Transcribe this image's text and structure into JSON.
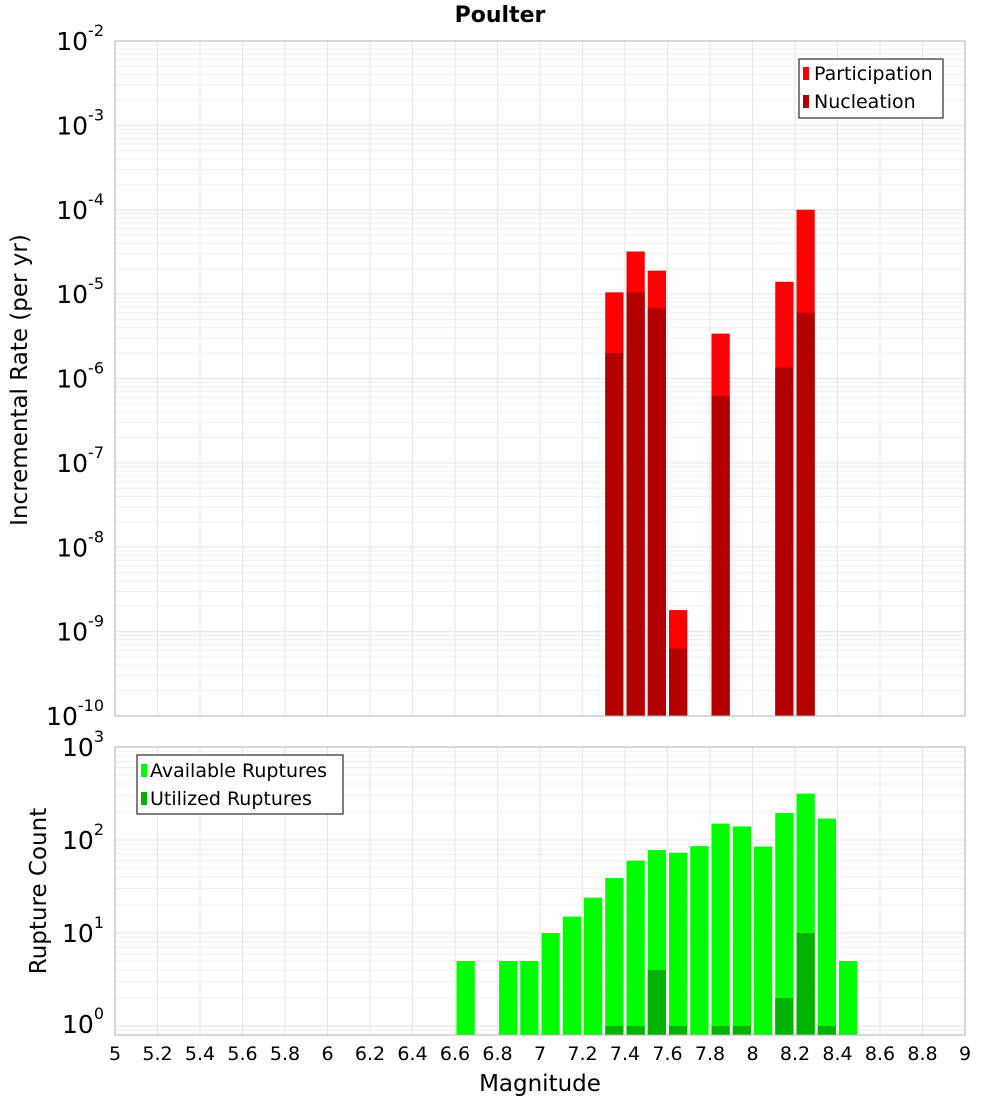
{
  "chart_data": [
    {
      "type": "bar",
      "title": "Poulter",
      "xlabel": "",
      "ylabel": "Incremental Rate (per yr)",
      "yscale": "log",
      "ylim": [
        1e-10,
        0.01
      ],
      "xlim": [
        5,
        9
      ],
      "bar_width": 0.1,
      "grid": true,
      "legend_position": "top-right",
      "series": [
        {
          "name": "Participation",
          "color": "#ff0000",
          "x": [
            7.35,
            7.45,
            7.55,
            7.65,
            7.85,
            8.15,
            8.25
          ],
          "values": [
            1.05e-05,
            3.2e-05,
            1.9e-05,
            1.8e-09,
            3.4e-06,
            1.4e-05,
            0.0001
          ]
        },
        {
          "name": "Nucleation",
          "color": "#b30000",
          "x": [
            7.35,
            7.45,
            7.55,
            7.65,
            7.85,
            8.15,
            8.25
          ],
          "values": [
            2e-06,
            1.05e-05,
            6.8e-06,
            6.3e-10,
            6.2e-07,
            1.35e-06,
            6e-06
          ]
        }
      ]
    },
    {
      "type": "bar",
      "title": "",
      "xlabel": "Magnitude",
      "ylabel": "Rupture Count",
      "yscale": "log",
      "ylim": [
        0.8,
        1000
      ],
      "xlim": [
        5,
        9
      ],
      "bar_width": 0.1,
      "grid": true,
      "legend_position": "top-left",
      "x_ticks": [
        "5",
        "5.2",
        "5.4",
        "5.6",
        "5.8",
        "6",
        "6.2",
        "6.4",
        "6.6",
        "6.8",
        "7",
        "7.2",
        "7.4",
        "7.6",
        "7.8",
        "8",
        "8.2",
        "8.4",
        "8.6",
        "8.8",
        "9"
      ],
      "series": [
        {
          "name": "Available Ruptures",
          "color": "#00ff00",
          "x": [
            6.65,
            6.85,
            6.95,
            7.05,
            7.15,
            7.25,
            7.35,
            7.45,
            7.55,
            7.65,
            7.75,
            7.85,
            7.95,
            8.05,
            8.15,
            8.25,
            8.35,
            8.45
          ],
          "values": [
            5,
            5,
            5,
            10,
            15,
            24,
            39,
            60,
            78,
            73,
            86,
            150,
            140,
            85,
            195,
            315,
            170,
            5
          ]
        },
        {
          "name": "Utilized Ruptures",
          "color": "#00b300",
          "x": [
            7.35,
            7.45,
            7.55,
            7.65,
            7.85,
            7.95,
            8.15,
            8.25,
            8.35
          ],
          "values": [
            1,
            1,
            4,
            1,
            1,
            1,
            2,
            10,
            1
          ]
        }
      ]
    }
  ]
}
